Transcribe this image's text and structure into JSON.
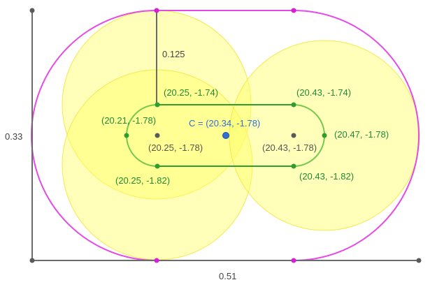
{
  "colors": {
    "axis": "#6b6b6b",
    "outer_stadium": "#e64ae6",
    "inner_stadium": "#4cb43c",
    "circle_fill": "#ffff66",
    "circle_stroke": "#f2ea4a",
    "point_green": "#2e9e2e",
    "point_magenta": "#d61fd6",
    "point_gray": "#5a5a5a",
    "point_center": "#2f6fd6",
    "label_green": "#1f8a3a",
    "label_gray": "#555555",
    "label_blue": "#2f6fd6",
    "label_dim": "#444444"
  },
  "dimensions": {
    "height": "0.33",
    "width": "0.51",
    "radius": "0.125"
  },
  "labels": {
    "top_left": "(20.25, -1.74)",
    "top_right": "(20.43, -1.74)",
    "left": "(20.21, -1.78)",
    "right": "(20.47, -1.78)",
    "bottom_left": "(20.25, -1.82)",
    "bottom_right": "(20.43, -1.82)",
    "center_left": "(20.25, -1.78)",
    "center_right": "(20.43, -1.78)",
    "center": "C = (20.34, -1.78)"
  }
}
